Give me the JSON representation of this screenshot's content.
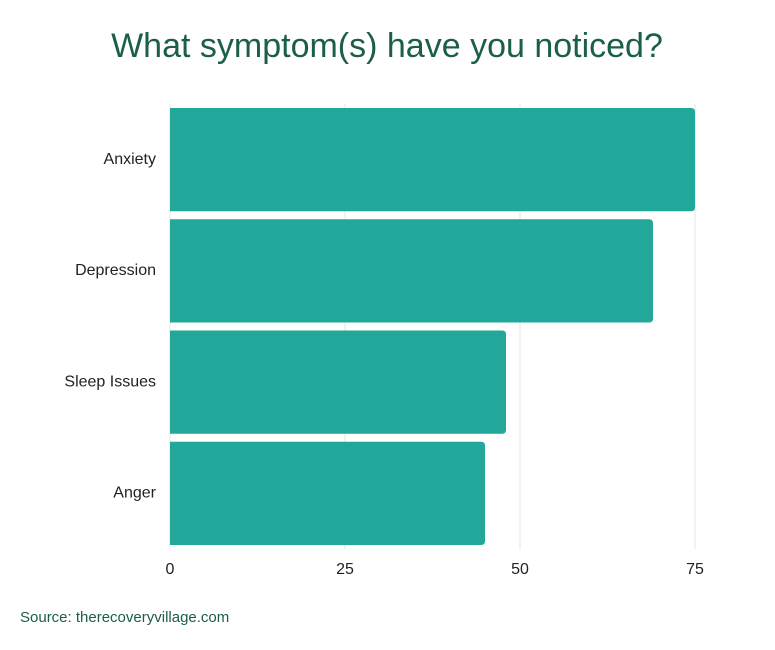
{
  "chart_data": {
    "type": "hbar",
    "title": "What symptom(s) have you noticed?",
    "categories": [
      "Anxiety",
      "Depression",
      "Sleep Issues",
      "Anger"
    ],
    "values": [
      75,
      69,
      48,
      45
    ],
    "color": "#21a89a",
    "xlim": [
      0,
      75
    ],
    "xticks": [
      0,
      25,
      50,
      75
    ],
    "grid": true,
    "source": "Source: therecoveryvillage.com"
  }
}
